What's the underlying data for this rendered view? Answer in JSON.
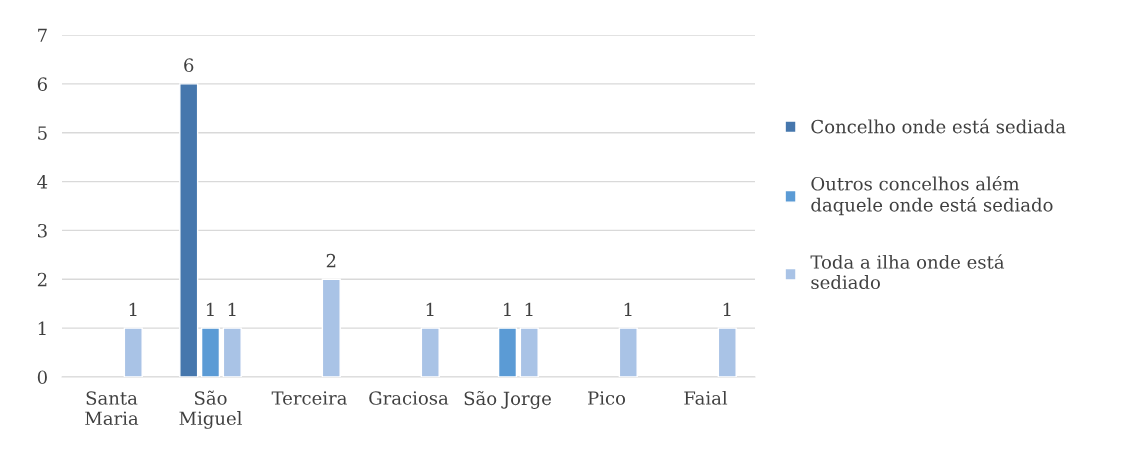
{
  "chart_data": {
    "type": "bar",
    "categories": [
      "Santa\nMaria",
      "São\nMiguel",
      "Terceira",
      "Graciosa",
      "São Jorge",
      "Pico",
      "Faial"
    ],
    "series": [
      {
        "name": "Concelho onde está sediada",
        "color": "#4677ad",
        "values": [
          null,
          6,
          null,
          null,
          null,
          null,
          null
        ]
      },
      {
        "name": "Outros concelhos além\ndaquele onde está sediado",
        "color": "#5b9bd5",
        "values": [
          null,
          1,
          null,
          null,
          1,
          null,
          null
        ]
      },
      {
        "name": "Toda a ilha onde está\nsediado",
        "color": "#a9c3e6",
        "values": [
          1,
          1,
          2,
          1,
          1,
          1,
          1
        ]
      }
    ],
    "ylim": [
      0,
      7
    ],
    "yticks": [
      0,
      1,
      2,
      3,
      4,
      5,
      6,
      7
    ],
    "grid": "y",
    "legend": "right",
    "data_labels": true
  }
}
